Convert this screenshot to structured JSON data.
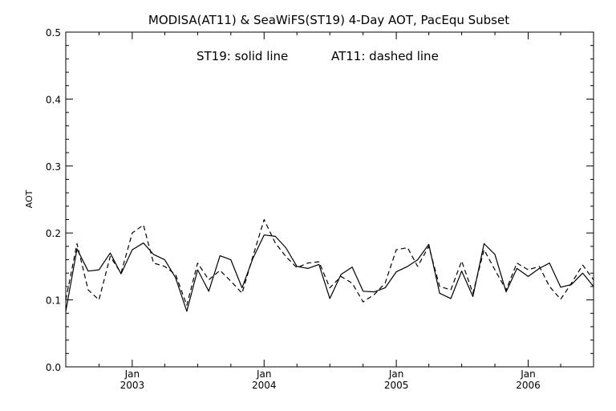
{
  "chart_data": {
    "type": "line",
    "title": "MODISA(AT11) & SeaWiFS(ST19) 4-Day AOT, PacEqu Subset",
    "annotation_st19": "ST19: solid line",
    "annotation_at11": "AT11: dashed line",
    "xlabel": "",
    "ylabel": "AOT",
    "ylim": [
      0.0,
      0.5
    ],
    "y_ticks": [
      "0.0",
      "0.1",
      "0.2",
      "0.3",
      "0.4",
      "0.5"
    ],
    "xlim": [
      "2002-07-01",
      "2006-07-01"
    ],
    "x_ticks": [
      {
        "date": "2003-01-01",
        "month": "Jan",
        "year": "2003"
      },
      {
        "date": "2004-01-01",
        "month": "Jan",
        "year": "2004"
      },
      {
        "date": "2005-01-01",
        "month": "Jan",
        "year": "2005"
      },
      {
        "date": "2006-01-01",
        "month": "Jan",
        "year": "2006"
      }
    ],
    "grid": false,
    "series": [
      {
        "name": "ST19",
        "style": "solid",
        "color": "#000000",
        "x": [
          "2002-07-01",
          "2002-08-01",
          "2002-09-01",
          "2002-10-01",
          "2002-11-01",
          "2002-12-01",
          "2003-01-01",
          "2003-02-01",
          "2003-03-01",
          "2003-04-01",
          "2003-05-01",
          "2003-06-01",
          "2003-07-01",
          "2003-08-01",
          "2003-09-01",
          "2003-10-01",
          "2003-11-01",
          "2003-12-01",
          "2004-01-01",
          "2004-02-01",
          "2004-03-01",
          "2004-04-01",
          "2004-05-01",
          "2004-06-01",
          "2004-07-01",
          "2004-08-01",
          "2004-09-01",
          "2004-10-01",
          "2004-11-01",
          "2004-12-01",
          "2005-01-01",
          "2005-02-01",
          "2005-03-01",
          "2005-04-01",
          "2005-05-01",
          "2005-06-01",
          "2005-07-01",
          "2005-08-01",
          "2005-09-01",
          "2005-10-01",
          "2005-11-01",
          "2005-12-01",
          "2006-01-01",
          "2006-02-01",
          "2006-03-01",
          "2006-04-01",
          "2006-05-01",
          "2006-06-01",
          "2006-07-01"
        ],
        "values": [
          0.083,
          0.176,
          0.143,
          0.145,
          0.17,
          0.139,
          0.175,
          0.185,
          0.168,
          0.16,
          0.133,
          0.083,
          0.145,
          0.113,
          0.166,
          0.16,
          0.118,
          0.162,
          0.197,
          0.195,
          0.178,
          0.15,
          0.147,
          0.153,
          0.102,
          0.138,
          0.149,
          0.113,
          0.112,
          0.118,
          0.142,
          0.15,
          0.16,
          0.183,
          0.11,
          0.102,
          0.143,
          0.105,
          0.184,
          0.168,
          0.112,
          0.147,
          0.135,
          0.147,
          0.155,
          0.119,
          0.123,
          0.14,
          0.12
        ]
      },
      {
        "name": "AT11",
        "style": "dashed",
        "color": "#000000",
        "x": [
          "2002-07-01",
          "2002-08-01",
          "2002-09-01",
          "2002-10-01",
          "2002-11-01",
          "2002-12-01",
          "2003-01-01",
          "2003-02-01",
          "2003-03-01",
          "2003-04-01",
          "2003-05-01",
          "2003-06-01",
          "2003-07-01",
          "2003-08-01",
          "2003-09-01",
          "2003-10-01",
          "2003-11-01",
          "2003-12-01",
          "2004-01-01",
          "2004-02-01",
          "2004-03-01",
          "2004-04-01",
          "2004-05-01",
          "2004-06-01",
          "2004-07-01",
          "2004-08-01",
          "2004-09-01",
          "2004-10-01",
          "2004-11-01",
          "2004-12-01",
          "2005-01-01",
          "2005-02-01",
          "2005-03-01",
          "2005-04-01",
          "2005-05-01",
          "2005-06-01",
          "2005-07-01",
          "2005-08-01",
          "2005-09-01",
          "2005-10-01",
          "2005-11-01",
          "2005-12-01",
          "2006-01-01",
          "2006-02-01",
          "2006-03-01",
          "2006-04-01",
          "2006-05-01",
          "2006-06-01",
          "2006-07-01"
        ],
        "values": [
          0.1,
          0.184,
          0.115,
          0.1,
          0.165,
          0.14,
          0.2,
          0.212,
          0.155,
          0.15,
          0.138,
          0.092,
          0.155,
          0.13,
          0.144,
          0.128,
          0.11,
          0.165,
          0.22,
          0.185,
          0.165,
          0.148,
          0.155,
          0.157,
          0.118,
          0.135,
          0.125,
          0.097,
          0.108,
          0.125,
          0.175,
          0.178,
          0.15,
          0.18,
          0.12,
          0.115,
          0.158,
          0.11,
          0.175,
          0.145,
          0.115,
          0.155,
          0.145,
          0.15,
          0.12,
          0.101,
          0.125,
          0.152,
          0.13
        ]
      }
    ]
  }
}
